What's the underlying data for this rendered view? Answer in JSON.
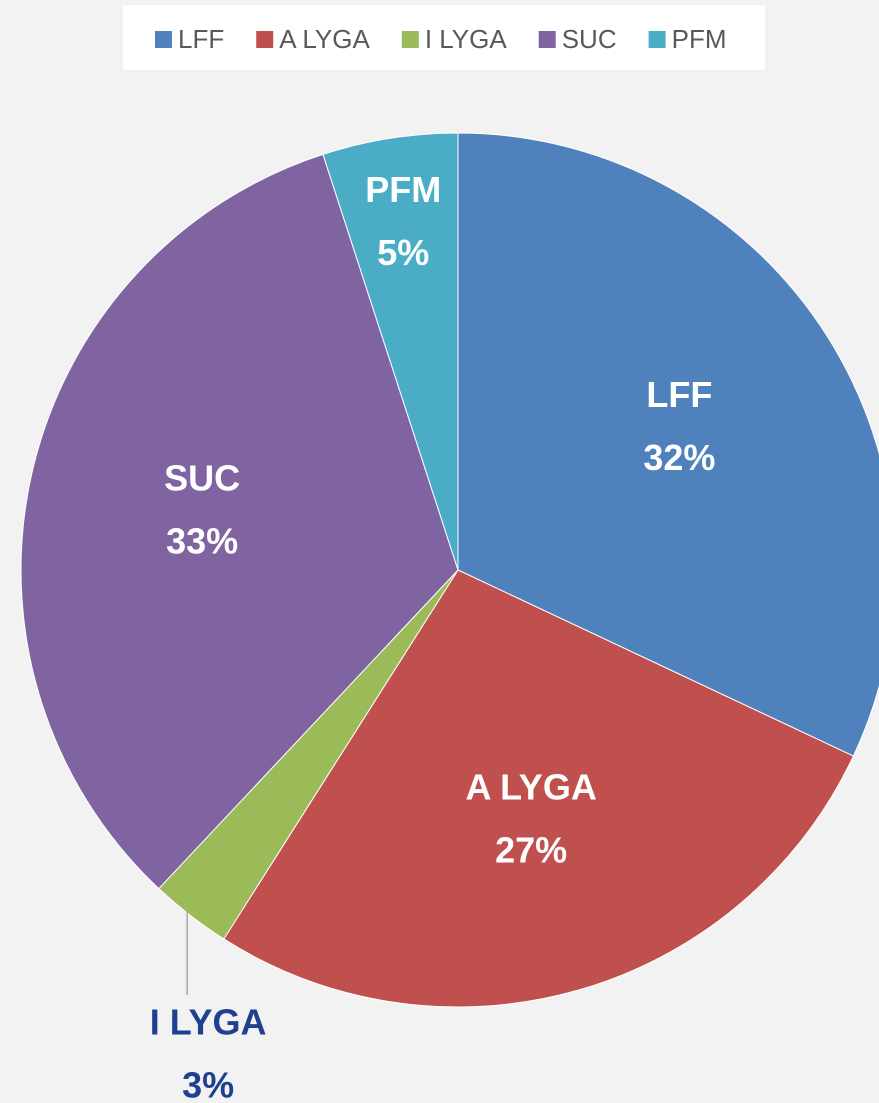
{
  "chart_data": {
    "type": "pie",
    "categories": [
      "LFF",
      "A LYGA",
      "I LYGA",
      "SUC",
      "PFM"
    ],
    "values": [
      32,
      27,
      3,
      33,
      5
    ],
    "value_labels": [
      "32%",
      "27%",
      "3%",
      "33%",
      "5%"
    ],
    "colors": [
      "#4f81bd",
      "#c0504d",
      "#9bbb59",
      "#8064a2",
      "#4bacc6"
    ],
    "legend": "top"
  }
}
